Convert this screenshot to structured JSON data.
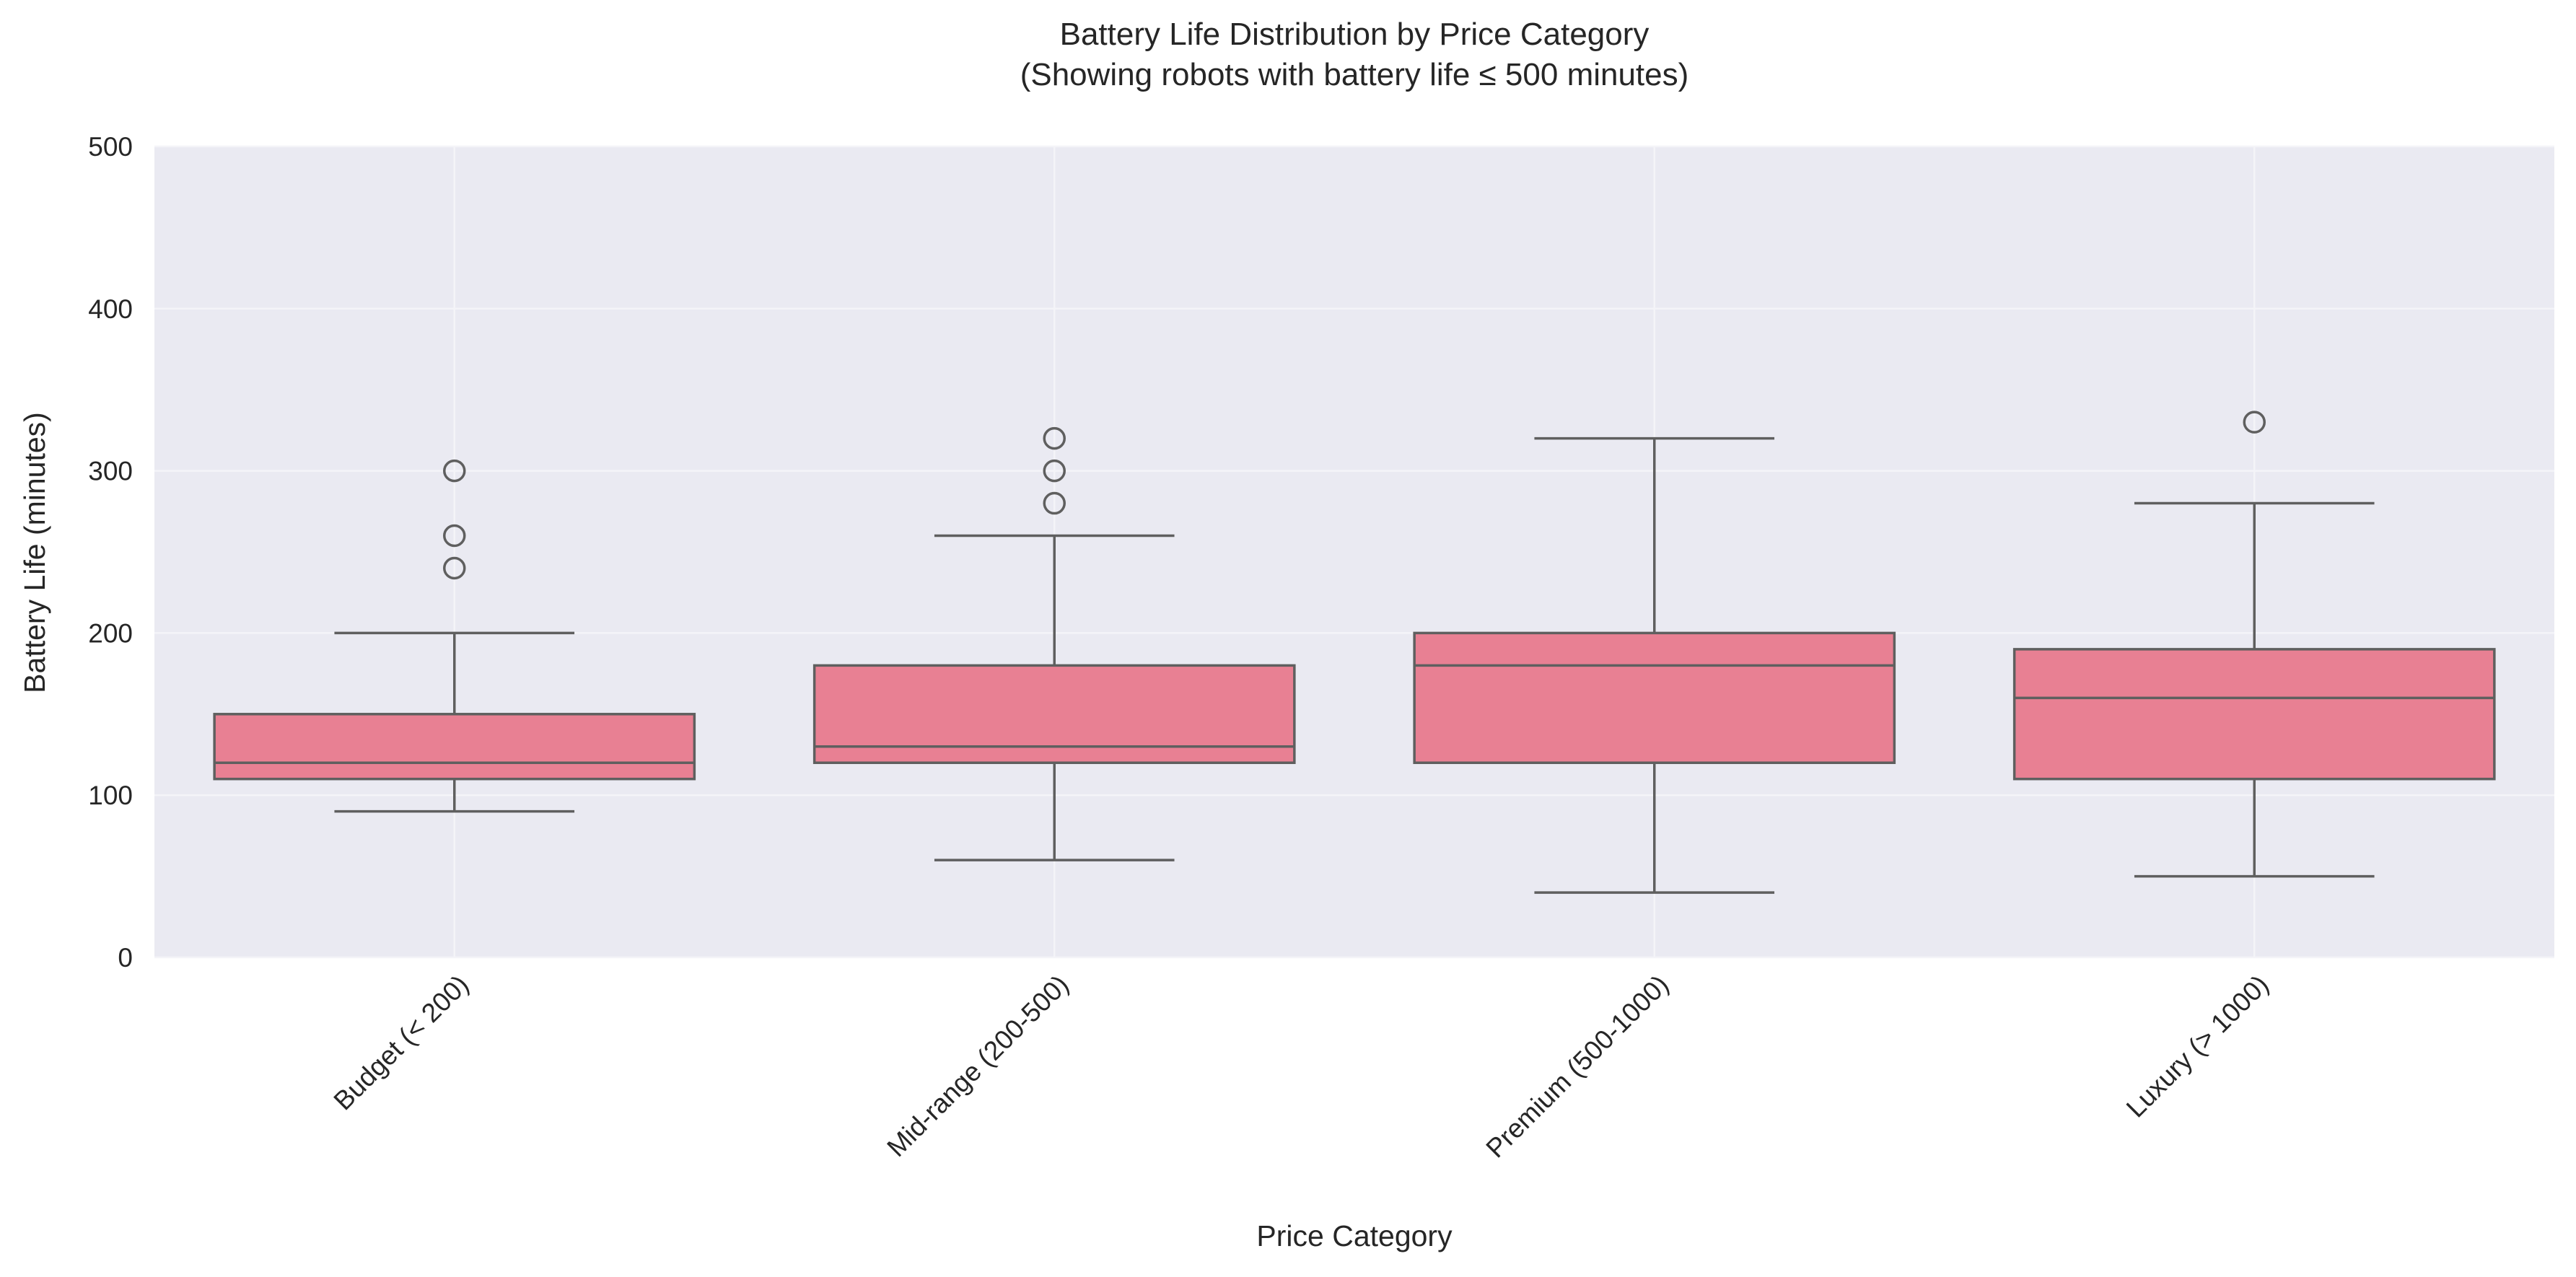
{
  "chart_data": {
    "type": "box",
    "title_line1": "Battery Life Distribution by Price Category",
    "title_line2": "(Showing robots with battery life ≤ 500 minutes)",
    "xlabel": "Price Category",
    "ylabel": "Battery Life (minutes)",
    "ylim": [
      0,
      500
    ],
    "yticks": [
      0,
      100,
      200,
      300,
      400,
      500
    ],
    "ytick_labels": [
      "0",
      "100",
      "200",
      "300",
      "400",
      "500"
    ],
    "grid": true,
    "categories": [
      "Budget (< 200)",
      "Mid-range (200-500)",
      "Premium (500-1000)",
      "Luxury (> 1000)"
    ],
    "boxes": [
      {
        "category": "Budget (< 200)",
        "whisker_low": 90,
        "q1": 110,
        "median": 120,
        "q3": 150,
        "whisker_high": 200,
        "outliers": [
          240,
          260,
          300
        ]
      },
      {
        "category": "Mid-range (200-500)",
        "whisker_low": 60,
        "q1": 120,
        "median": 130,
        "q3": 180,
        "whisker_high": 260,
        "outliers": [
          280,
          300,
          320
        ]
      },
      {
        "category": "Premium (500-1000)",
        "whisker_low": 40,
        "q1": 120,
        "median": 180,
        "q3": 200,
        "whisker_high": 320,
        "outliers": []
      },
      {
        "category": "Luxury (> 1000)",
        "whisker_low": 50,
        "q1": 110,
        "median": 160,
        "q3": 190,
        "whisker_high": 280,
        "outliers": [
          330
        ]
      }
    ],
    "colors": {
      "box_fill": "#e88093",
      "line": "#5f5f5f",
      "plot_background": "#eaeaf2",
      "grid": "#f4f4f8",
      "text": "#262626"
    }
  }
}
